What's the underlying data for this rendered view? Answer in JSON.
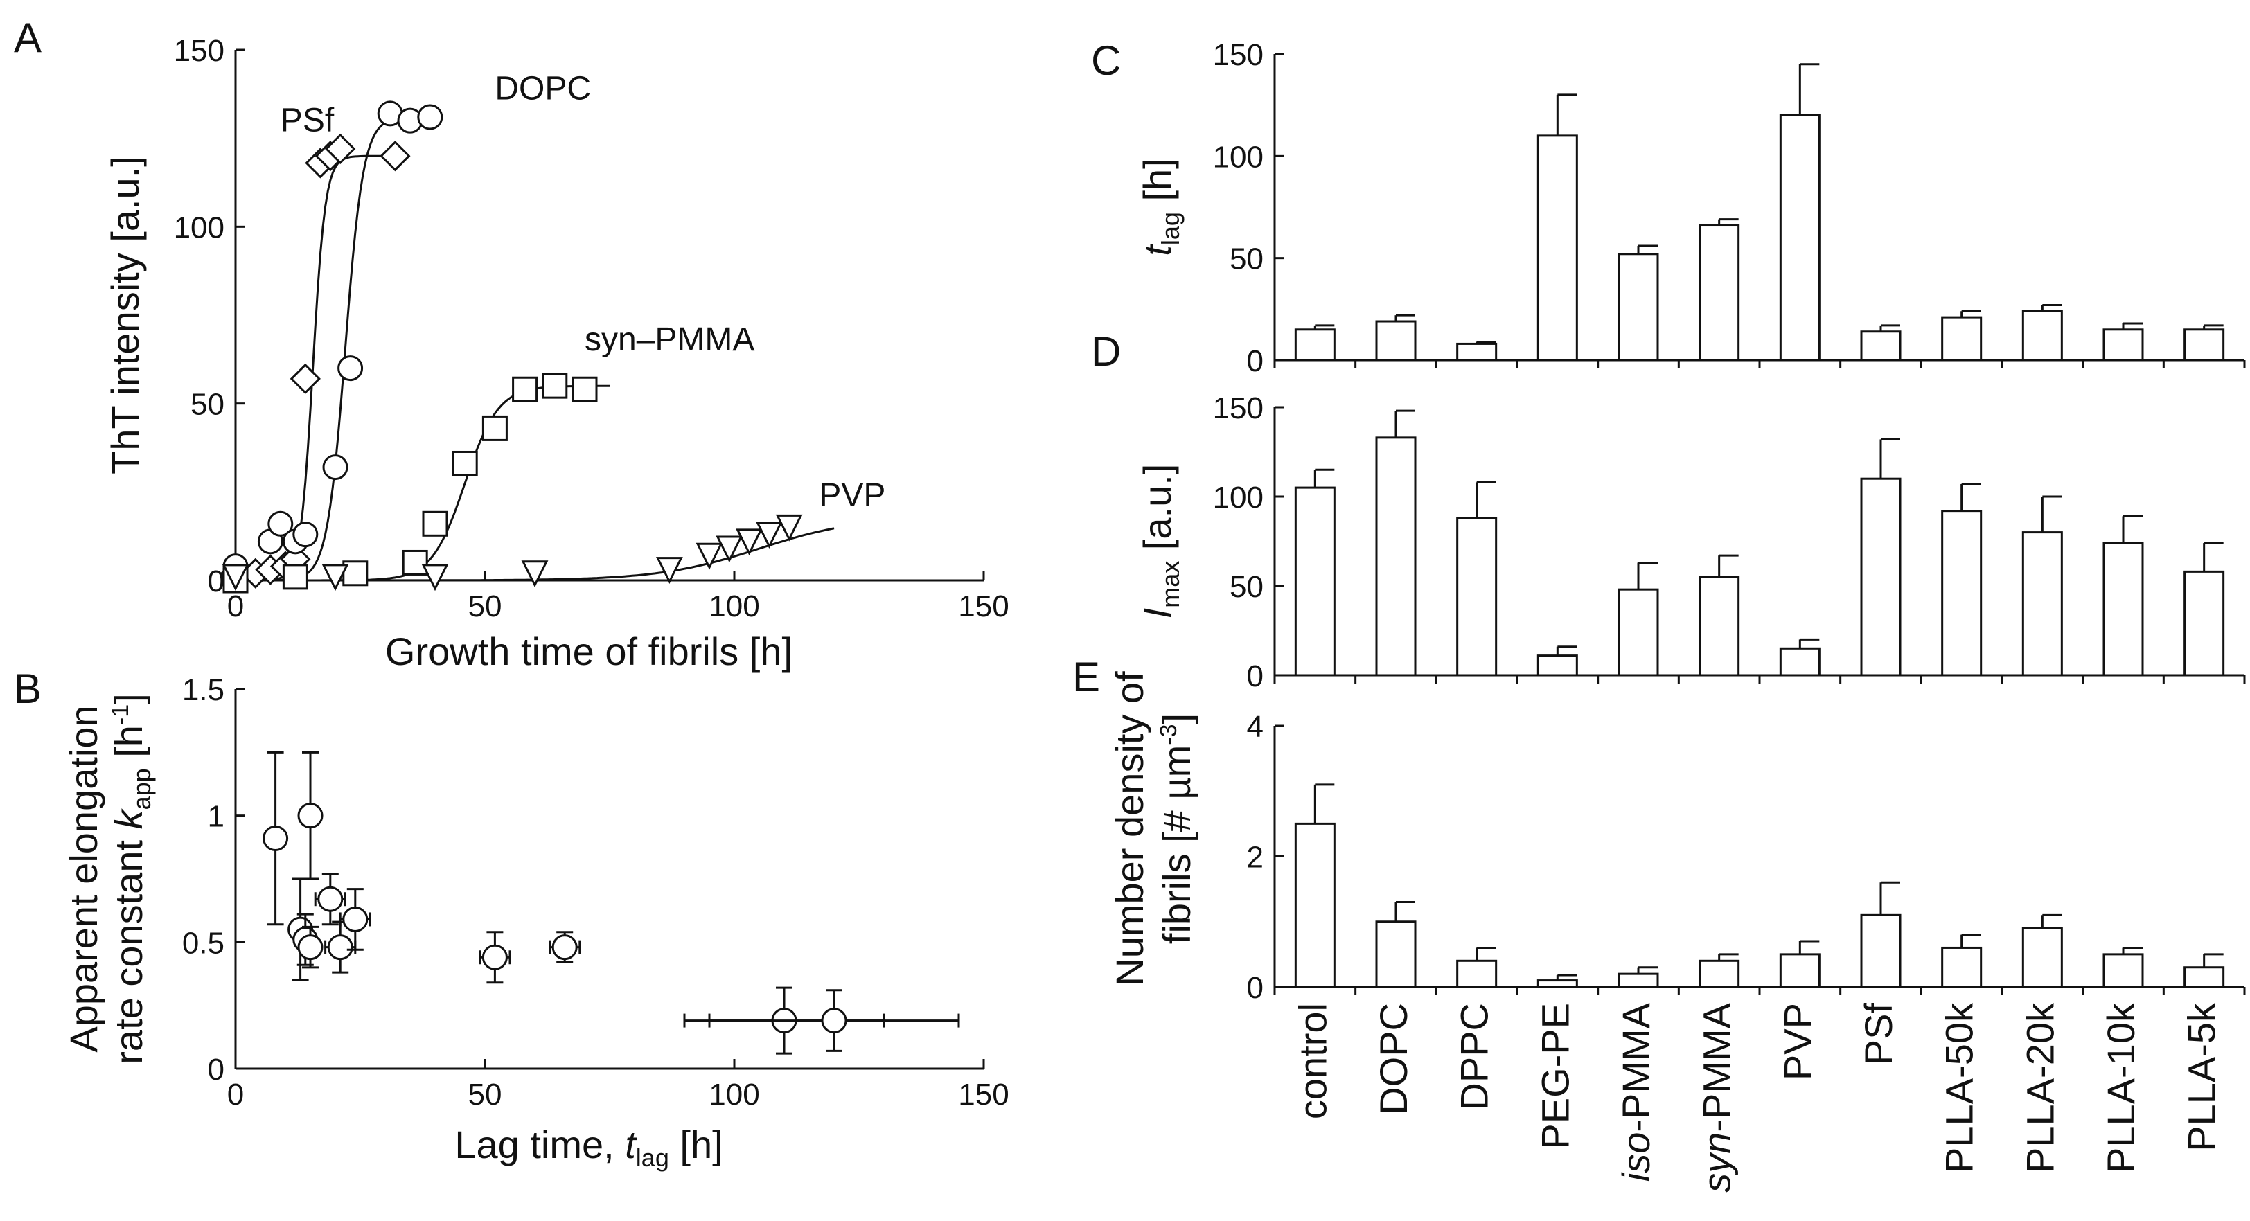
{
  "chart_data": [
    {
      "panel": "A",
      "type": "scatter",
      "xlabel": "Growth time of fibrils [h]",
      "ylabel": "ThT intensity [a.u.]",
      "xlim": [
        0,
        150
      ],
      "ylim": [
        0,
        150
      ],
      "xticks": [
        0,
        50,
        100,
        150
      ],
      "yticks": [
        0,
        50,
        100,
        150
      ],
      "series": [
        {
          "name": "PSf",
          "marker": "diamond",
          "points": [
            [
              0,
              2
            ],
            [
              4,
              2
            ],
            [
              7,
              3
            ],
            [
              10,
              4
            ],
            [
              12,
              6
            ],
            [
              14,
              57
            ],
            [
              17,
              118
            ],
            [
              19,
              120
            ],
            [
              21,
              122
            ],
            [
              32,
              120
            ]
          ],
          "fit": {
            "top": 120,
            "mid": 15.5,
            "k": 0.8
          }
        },
        {
          "name": "DOPC",
          "marker": "circle",
          "points": [
            [
              0,
              4
            ],
            [
              7,
              11
            ],
            [
              9,
              16
            ],
            [
              12,
              11
            ],
            [
              14,
              13
            ],
            [
              20,
              32
            ],
            [
              23,
              60
            ],
            [
              31,
              132
            ],
            [
              35,
              130
            ],
            [
              39,
              131
            ]
          ],
          "fit": {
            "top": 131,
            "mid": 22,
            "k": 0.55
          }
        },
        {
          "name": "syn–PMMA",
          "marker": "square",
          "points": [
            [
              0,
              0
            ],
            [
              12,
              1
            ],
            [
              24,
              2
            ],
            [
              36,
              5
            ],
            [
              40,
              16
            ],
            [
              46,
              33
            ],
            [
              52,
              43
            ],
            [
              58,
              54
            ],
            [
              64,
              55
            ],
            [
              70,
              54
            ]
          ],
          "fit": {
            "top": 55,
            "mid": 46,
            "k": 0.3
          }
        },
        {
          "name": "PVP",
          "marker": "triangle",
          "points": [
            [
              0,
              1
            ],
            [
              20,
              1
            ],
            [
              40,
              1
            ],
            [
              60,
              2
            ],
            [
              87,
              3
            ],
            [
              95,
              7
            ],
            [
              99,
              9
            ],
            [
              103,
              11
            ],
            [
              107,
              13
            ],
            [
              111,
              15
            ]
          ],
          "fit": {
            "top": 18,
            "mid": 105,
            "k": 0.1
          }
        }
      ]
    },
    {
      "panel": "B",
      "type": "scatter",
      "xlabel_main": "Lag time, ",
      "xlabel_var": "t",
      "xlabel_sub": "lag",
      "xlabel_unit": " [h]",
      "ylabel_line1": "Apparent elongation",
      "ylabel_line2_main": "rate constant ",
      "ylabel_line2_var": "k",
      "ylabel_line2_sub": "app",
      "ylabel_line2_unit": " [h",
      "ylabel_line2_sup": "-1",
      "ylabel_line2_end": "]",
      "xlim": [
        0,
        150
      ],
      "ylim": [
        0,
        1.5
      ],
      "xticks": [
        0,
        50,
        100,
        150
      ],
      "yticks": [
        0,
        0.5,
        1,
        1.5
      ],
      "ytick_labels": [
        "0",
        "0.5",
        "1",
        "1.5"
      ],
      "points": [
        {
          "x": 8,
          "y": 0.91,
          "xerr": 1,
          "yerr": 0.34
        },
        {
          "x": 15,
          "y": 1.0,
          "xerr": 1,
          "yerr": 0.25
        },
        {
          "x": 13,
          "y": 0.55,
          "xerr": 2,
          "yerr": 0.2
        },
        {
          "x": 14,
          "y": 0.51,
          "xerr": 2,
          "yerr": 0.1
        },
        {
          "x": 15,
          "y": 0.48,
          "xerr": 2,
          "yerr": 0.08
        },
        {
          "x": 19,
          "y": 0.67,
          "xerr": 3,
          "yerr": 0.1
        },
        {
          "x": 21,
          "y": 0.48,
          "xerr": 3,
          "yerr": 0.1
        },
        {
          "x": 24,
          "y": 0.59,
          "xerr": 3,
          "yerr": 0.12
        },
        {
          "x": 52,
          "y": 0.44,
          "xerr": 3,
          "yerr": 0.1
        },
        {
          "x": 66,
          "y": 0.48,
          "xerr": 3,
          "yerr": 0.06
        },
        {
          "x": 110,
          "y": 0.19,
          "xerr": 20,
          "yerr": 0.13
        },
        {
          "x": 120,
          "y": 0.19,
          "xerr": 25,
          "yerr": 0.12
        }
      ]
    },
    {
      "panel": "C",
      "type": "bar",
      "ylabel_var": "t",
      "ylabel_sub": "lag",
      "ylabel_unit": " [h]",
      "ylim": [
        0,
        150
      ],
      "yticks": [
        0,
        50,
        100,
        150
      ],
      "values": [
        15,
        19,
        8,
        110,
        52,
        66,
        120,
        14,
        21,
        24,
        15,
        15
      ],
      "errors": [
        2,
        3,
        1,
        20,
        4,
        3,
        25,
        3,
        3,
        3,
        3,
        2
      ]
    },
    {
      "panel": "D",
      "type": "bar",
      "ylabel_var": "I",
      "ylabel_sub": "max",
      "ylabel_unit": " [a.u.]",
      "ylim": [
        0,
        150
      ],
      "yticks": [
        0,
        50,
        100,
        150
      ],
      "values": [
        105,
        133,
        88,
        11,
        48,
        55,
        15,
        110,
        92,
        80,
        74,
        58
      ],
      "errors": [
        10,
        15,
        20,
        5,
        15,
        12,
        5,
        22,
        15,
        20,
        15,
        16
      ]
    },
    {
      "panel": "E",
      "type": "bar",
      "ylabel_line1": "Number density of",
      "ylabel_line2": "fibrils [# µm",
      "ylabel_line2_sup": "-3",
      "ylabel_line2_end": "]",
      "ylim": [
        0,
        4
      ],
      "yticks": [
        0,
        2,
        4
      ],
      "values": [
        2.5,
        1.0,
        0.4,
        0.1,
        0.2,
        0.4,
        0.5,
        1.1,
        0.6,
        0.9,
        0.5,
        0.3
      ],
      "errors": [
        0.6,
        0.3,
        0.2,
        0.08,
        0.1,
        0.1,
        0.2,
        0.5,
        0.2,
        0.2,
        0.1,
        0.2
      ]
    }
  ],
  "categories": [
    {
      "prefix": "",
      "italic": "",
      "suffix": "control"
    },
    {
      "prefix": "",
      "italic": "",
      "suffix": "DOPC"
    },
    {
      "prefix": "",
      "italic": "",
      "suffix": "DPPC"
    },
    {
      "prefix": "",
      "italic": "",
      "suffix": "PEG-PE"
    },
    {
      "prefix": "",
      "italic": "iso",
      "suffix": "-PMMA"
    },
    {
      "prefix": "",
      "italic": "syn",
      "suffix": "-PMMA"
    },
    {
      "prefix": "",
      "italic": "",
      "suffix": "PVP"
    },
    {
      "prefix": "",
      "italic": "",
      "suffix": "PSf"
    },
    {
      "prefix": "",
      "italic": "",
      "suffix": "PLLA-50k"
    },
    {
      "prefix": "",
      "italic": "",
      "suffix": "PLLA-20k"
    },
    {
      "prefix": "",
      "italic": "",
      "suffix": "PLLA-10k"
    },
    {
      "prefix": "",
      "italic": "",
      "suffix": "PLLA-5k"
    }
  ],
  "panel_letters": [
    "A",
    "B",
    "C",
    "D",
    "E"
  ]
}
